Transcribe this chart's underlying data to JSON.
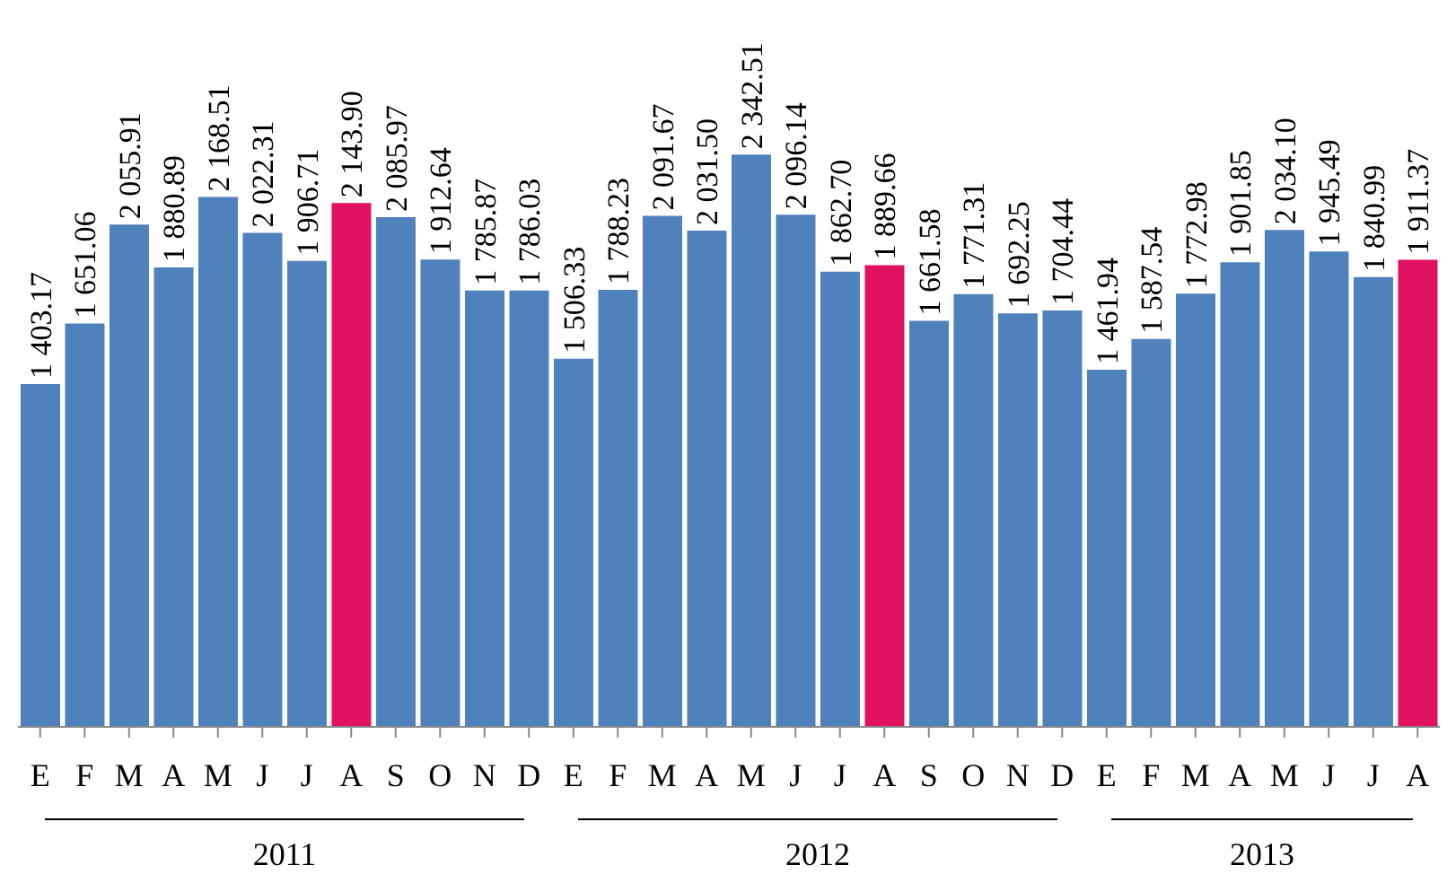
{
  "chart_data": {
    "type": "bar",
    "categories": [
      "E",
      "F",
      "M",
      "A",
      "M",
      "J",
      "J",
      "A",
      "S",
      "O",
      "N",
      "D",
      "E",
      "F",
      "M",
      "A",
      "M",
      "J",
      "J",
      "A",
      "S",
      "O",
      "N",
      "D",
      "E",
      "F",
      "M",
      "A",
      "M",
      "J",
      "J",
      "A"
    ],
    "values": [
      1403.17,
      1651.06,
      2055.91,
      1880.89,
      2168.51,
      2022.31,
      1906.71,
      2143.9,
      2085.97,
      1912.64,
      1785.87,
      1786.03,
      1506.33,
      1788.23,
      2091.67,
      2031.5,
      2342.51,
      2096.14,
      1862.7,
      1889.66,
      1661.58,
      1771.31,
      1692.25,
      1704.44,
      1461.94,
      1587.54,
      1772.98,
      1901.85,
      2034.1,
      1945.49,
      1840.99,
      1911.37
    ],
    "value_labels": [
      "1 403.17",
      "1 651.06",
      "2 055.91",
      "1 880.89",
      "2 168.51",
      "2 022.31",
      "1 906.71",
      "2 143.90",
      "2 085.97",
      "1 912.64",
      "1 785.87",
      "1 786.03",
      "1 506.33",
      "1 788.23",
      "2 091.67",
      "2 031.50",
      "2 342.51",
      "2 096.14",
      "1 862.70",
      "1 889.66",
      "1 661.58",
      "1 771.31",
      "1 692.25",
      "1 704.44",
      "1 461.94",
      "1 587.54",
      "1 772.98",
      "1 901.85",
      "2 034.10",
      "1 945.49",
      "1 840.99",
      "1 911.37"
    ],
    "colors": [
      "#4f81bd",
      "#4f81bd",
      "#4f81bd",
      "#4f81bd",
      "#4f81bd",
      "#4f81bd",
      "#4f81bd",
      "#e0115f",
      "#4f81bd",
      "#4f81bd",
      "#4f81bd",
      "#4f81bd",
      "#4f81bd",
      "#4f81bd",
      "#4f81bd",
      "#4f81bd",
      "#4f81bd",
      "#4f81bd",
      "#4f81bd",
      "#e0115f",
      "#4f81bd",
      "#4f81bd",
      "#4f81bd",
      "#4f81bd",
      "#4f81bd",
      "#4f81bd",
      "#4f81bd",
      "#4f81bd",
      "#4f81bd",
      "#4f81bd",
      "#4f81bd",
      "#e0115f"
    ],
    "annotations": [
      "2011",
      "2012",
      "2013"
    ],
    "grid": false,
    "legend": false
  }
}
